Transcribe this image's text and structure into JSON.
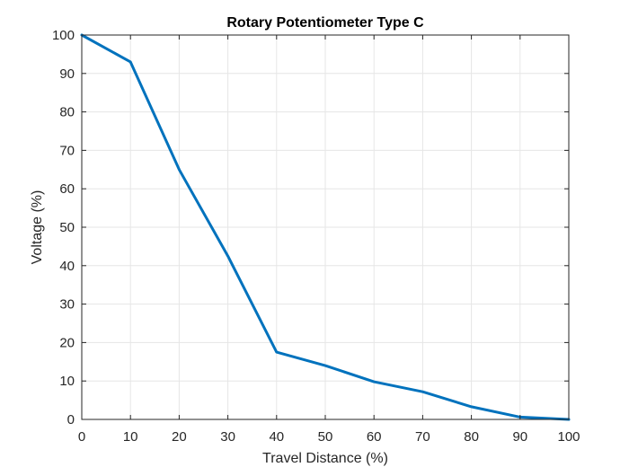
{
  "chart_data": {
    "type": "line",
    "title": "Rotary Potentiometer Type C",
    "xlabel": "Travel Distance (%)",
    "ylabel": "Voltage (%)",
    "xlim": [
      0,
      100
    ],
    "ylim": [
      0,
      100
    ],
    "xticks": [
      0,
      10,
      20,
      30,
      40,
      50,
      60,
      70,
      80,
      90,
      100
    ],
    "yticks": [
      0,
      10,
      20,
      30,
      40,
      50,
      60,
      70,
      80,
      90,
      100
    ],
    "grid": true,
    "legend": "none",
    "series": [
      {
        "color": "#0072BD",
        "x": [
          0,
          10,
          20,
          30,
          40,
          50,
          60,
          70,
          80,
          90,
          100
        ],
        "y": [
          100,
          93,
          65,
          42.5,
          17.5,
          14,
          9.8,
          7.2,
          3.3,
          0.6,
          0
        ]
      }
    ]
  },
  "colors": {
    "axis": "#262626",
    "grid": "#e6e6e6",
    "line": "#0072BD"
  }
}
